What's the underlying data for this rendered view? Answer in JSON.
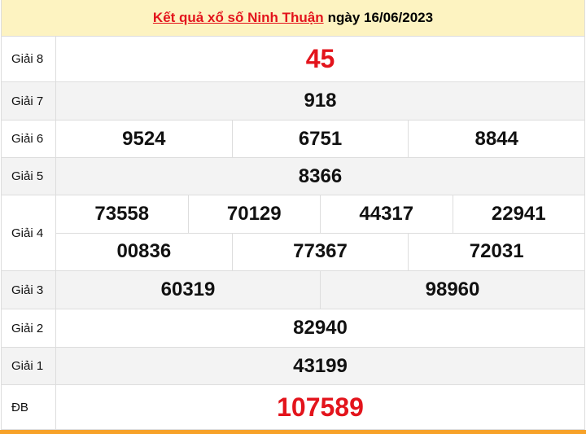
{
  "header": {
    "link_text": "Kết quả xổ số Ninh Thuận",
    "date_text": "ngày 16/06/2023"
  },
  "prizes": [
    {
      "label": "Giải 8",
      "rows": [
        [
          "45"
        ]
      ]
    },
    {
      "label": "Giải 7",
      "rows": [
        [
          "918"
        ]
      ]
    },
    {
      "label": "Giải 6",
      "rows": [
        [
          "9524",
          "6751",
          "8844"
        ]
      ]
    },
    {
      "label": "Giải 5",
      "rows": [
        [
          "8366"
        ]
      ]
    },
    {
      "label": "Giải 4",
      "rows": [
        [
          "73558",
          "70129",
          "44317",
          "22941"
        ],
        [
          "00836",
          "77367",
          "72031"
        ]
      ]
    },
    {
      "label": "Giải 3",
      "rows": [
        [
          "60319",
          "98960"
        ]
      ]
    },
    {
      "label": "Giải 2",
      "rows": [
        [
          "82940"
        ]
      ]
    },
    {
      "label": "Giải 1",
      "rows": [
        [
          "43199"
        ]
      ]
    },
    {
      "label": "ĐB",
      "rows": [
        [
          "107589"
        ]
      ]
    }
  ],
  "colors": {
    "accent_red": "#e3141c",
    "header_bg": "#fdf3c1",
    "footer_bar": "#f7a229"
  }
}
